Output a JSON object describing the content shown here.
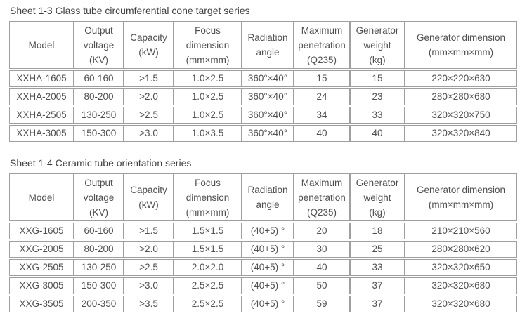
{
  "theme": {
    "background": "#ffffff",
    "text_color": "#4f4f4f",
    "title_color": "#3f3f3f",
    "border_color": "#9f9f9f"
  },
  "tables": [
    {
      "title": "Sheet 1-3 Glass tube circumferential cone target series",
      "columns": [
        [
          "Model"
        ],
        [
          "Output",
          "voltage",
          "(KV)"
        ],
        [
          "Capacity",
          "(kW)"
        ],
        [
          "Focus",
          "dimension",
          "(mm×mm)"
        ],
        [
          "Radiation",
          "angle"
        ],
        [
          "Maximum",
          "penetration",
          "(Q235)"
        ],
        [
          "Generator",
          "weight",
          "(kg)"
        ],
        [
          "Generator dimension",
          "(mm×mm×mm)"
        ]
      ],
      "rows": [
        [
          "XXHA-1605",
          "60-160",
          ">1.5",
          "1.0×2.5",
          "360°×40°",
          "15",
          "15",
          "220×220×630"
        ],
        [
          "XXHA-2005",
          "80-200",
          ">2.0",
          "1.0×2.5",
          "360°×40°",
          "24",
          "23",
          "280×280×680"
        ],
        [
          "XXHA-2505",
          "130-250",
          ">2.5",
          "1.0×2.5",
          "360°×40°",
          "34",
          "33",
          "320×320×750"
        ],
        [
          "XXHA-3005",
          "150-300",
          ">3.0",
          "1.0×3.5",
          "360°×40°",
          "40",
          "40",
          "320×320×840"
        ]
      ]
    },
    {
      "title": "Sheet 1-4 Ceramic tube orientation series",
      "columns": [
        [
          "Model"
        ],
        [
          "Output",
          "voltage",
          "(KV)"
        ],
        [
          "Capacity",
          "(kW)"
        ],
        [
          "Focus",
          "dimension",
          "(mm×mm)"
        ],
        [
          "Radiation",
          "angle"
        ],
        [
          "Maximum",
          "penetration",
          "(Q235)"
        ],
        [
          "Generator",
          "weight",
          "(kg)"
        ],
        [
          "Generator dimension",
          "(mm×mm×mm)"
        ]
      ],
      "rows": [
        [
          "XXG-1605",
          "60-160",
          ">1.5",
          "1.5×1.5",
          "(40+5) °",
          "20",
          "18",
          "210×210×560"
        ],
        [
          "XXG-2005",
          "80-200",
          ">2.0",
          "1.5×1.5",
          "(40+5) °",
          "30",
          "25",
          "280×280×620"
        ],
        [
          "XXG-2505",
          "130-250",
          ">2.5",
          "2.0×2.0",
          "(40+5) °",
          "40",
          "33",
          "320×320×650"
        ],
        [
          "XXG-3005",
          "150-300",
          ">3.0",
          "2.5×2.5",
          "(40+5) °",
          "50",
          "37",
          "320×320×680"
        ],
        [
          "XXG-3505",
          "200-350",
          ">3.5",
          "2.5×2.5",
          "(40+5) °",
          "59",
          "37",
          "320×320×680"
        ]
      ]
    }
  ]
}
